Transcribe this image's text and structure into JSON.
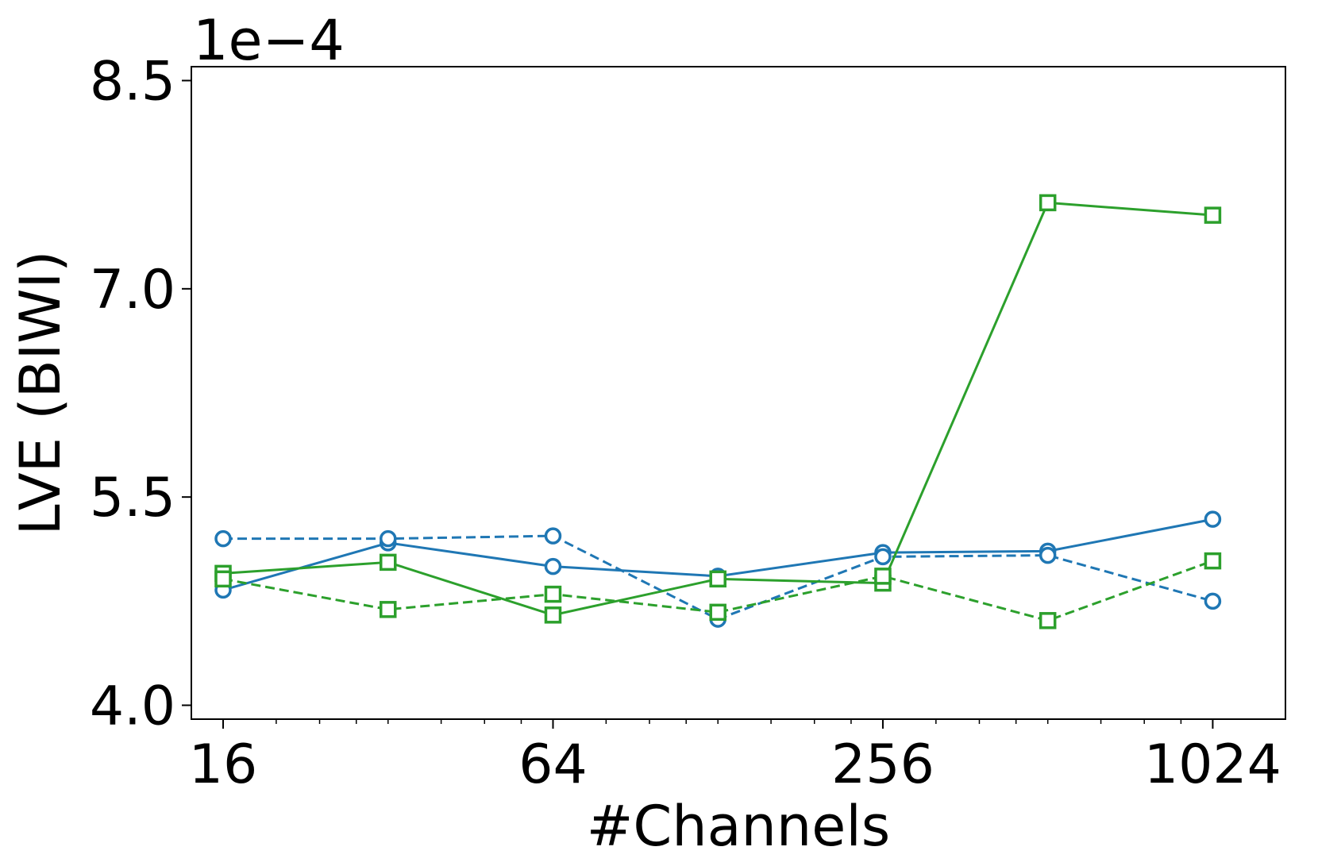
{
  "chart_data": {
    "type": "line",
    "xlabel": "#Channels",
    "ylabel": "LVE (BIWI)",
    "y_multiplier_label": "1e−4",
    "x_scale": "log2",
    "xlim": [
      14,
      1390
    ],
    "ylim": [
      3.9,
      8.6
    ],
    "x_ticks": [
      16,
      64,
      256,
      1024
    ],
    "x_tick_labels": [
      "16",
      "64",
      "256",
      "1024"
    ],
    "y_ticks": [
      4.0,
      5.5,
      7.0,
      8.5
    ],
    "y_tick_labels": [
      "4.0",
      "5.5",
      "7.0",
      "8.5"
    ],
    "grid": false,
    "x": [
      16,
      32,
      64,
      128,
      256,
      512,
      1024
    ],
    "series": [
      {
        "color": "#1f77b4",
        "linestyle": "solid",
        "marker": "circle",
        "values": [
          4.83,
          5.17,
          5.0,
          4.93,
          5.1,
          5.11,
          5.34
        ]
      },
      {
        "color": "#1f77b4",
        "linestyle": "dashed",
        "marker": "circle",
        "values": [
          5.2,
          5.2,
          5.22,
          4.62,
          5.07,
          5.08,
          4.75
        ]
      },
      {
        "color": "#2ca02c",
        "linestyle": "solid",
        "marker": "square",
        "values": [
          4.95,
          5.03,
          4.65,
          4.91,
          4.88,
          7.62,
          7.53
        ]
      },
      {
        "color": "#2ca02c",
        "linestyle": "dashed",
        "marker": "square",
        "values": [
          4.91,
          4.69,
          4.8,
          4.67,
          4.93,
          4.61,
          5.04
        ]
      }
    ]
  }
}
